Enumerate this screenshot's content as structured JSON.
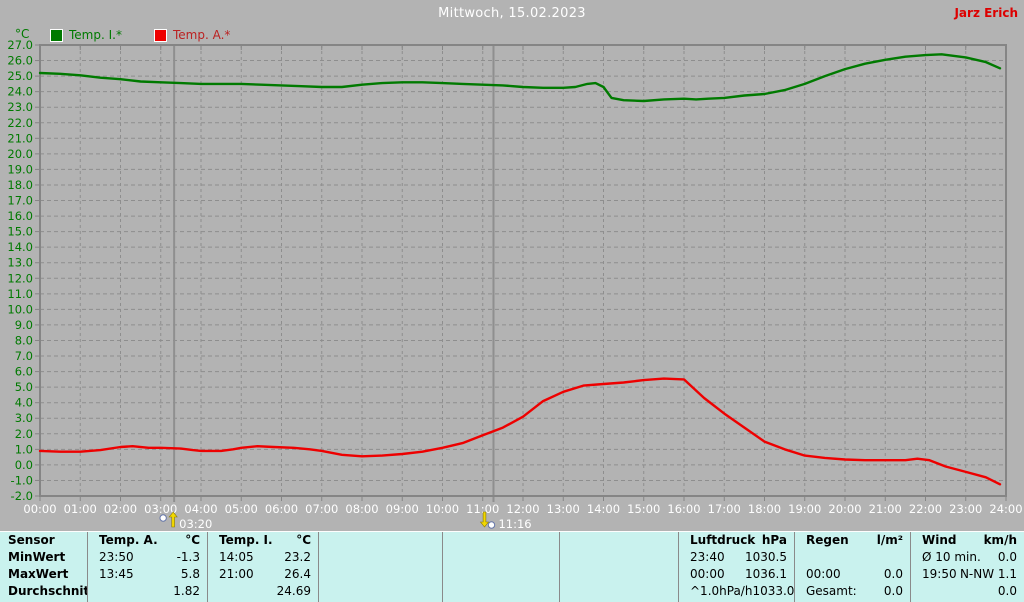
{
  "header": {
    "title": "Mittwoch, 15.02.2023",
    "user": "Jarz Erich"
  },
  "colors": {
    "background": "#b3b3b3",
    "grid": "#8e8e8e",
    "axis": "#858585",
    "event_line": "#8f8f8f",
    "table_background": "#c9f2ee",
    "title_text": "#ffffff",
    "user_text": "#dd0000",
    "y_label_text": "#007a00",
    "x_label_text": "#ffffff",
    "temp_i": "#007a00",
    "temp_a": "#ee0000",
    "event_arrow": "#f2d800"
  },
  "chart_data": {
    "type": "line",
    "title": "Mittwoch, 15.02.2023",
    "y_unit": "°C",
    "ylim": [
      -2.0,
      27.0
    ],
    "y_tick_step": 1.0,
    "y_tick_labels": [
      "27.0",
      "26.0",
      "25.0",
      "24.0",
      "23.0",
      "22.0",
      "21.0",
      "20.0",
      "19.0",
      "18.0",
      "17.0",
      "16.0",
      "15.0",
      "14.0",
      "13.0",
      "12.0",
      "11.0",
      "10.0",
      "9.0",
      "8.0",
      "7.0",
      "6.0",
      "5.0",
      "4.0",
      "3.0",
      "2.0",
      "1.0",
      "0.0",
      "-1.0",
      "-2.0"
    ],
    "xlim_hours": [
      0,
      24
    ],
    "x_tick_labels": [
      "00:00",
      "01:00",
      "02:00",
      "03:00",
      "04:00",
      "05:00",
      "06:00",
      "07:00",
      "08:00",
      "09:00",
      "10:00",
      "11:00",
      "12:00",
      "13:00",
      "14:00",
      "15:00",
      "16:00",
      "17:00",
      "18:00",
      "19:00",
      "20:00",
      "21:00",
      "22:00",
      "23:00",
      "24:00"
    ],
    "grid": "dashed",
    "legend_position": "top-left",
    "series": [
      {
        "name": "Temp. I.*",
        "color": "#007a00",
        "points": [
          [
            0,
            25.2
          ],
          [
            0.5,
            25.15
          ],
          [
            1,
            25.05
          ],
          [
            1.5,
            24.9
          ],
          [
            2,
            24.8
          ],
          [
            2.5,
            24.65
          ],
          [
            3,
            24.6
          ],
          [
            3.5,
            24.55
          ],
          [
            4,
            24.5
          ],
          [
            4.5,
            24.5
          ],
          [
            5,
            24.5
          ],
          [
            5.5,
            24.45
          ],
          [
            6,
            24.4
          ],
          [
            6.5,
            24.35
          ],
          [
            7,
            24.3
          ],
          [
            7.5,
            24.3
          ],
          [
            8,
            24.45
          ],
          [
            8.5,
            24.55
          ],
          [
            9,
            24.6
          ],
          [
            9.5,
            24.6
          ],
          [
            10,
            24.55
          ],
          [
            10.5,
            24.5
          ],
          [
            11,
            24.45
          ],
          [
            11.5,
            24.4
          ],
          [
            12,
            24.3
          ],
          [
            12.5,
            24.25
          ],
          [
            13,
            24.25
          ],
          [
            13.3,
            24.3
          ],
          [
            13.6,
            24.5
          ],
          [
            13.8,
            24.55
          ],
          [
            14,
            24.3
          ],
          [
            14.2,
            23.6
          ],
          [
            14.5,
            23.45
          ],
          [
            15,
            23.4
          ],
          [
            15.5,
            23.5
          ],
          [
            16,
            23.55
          ],
          [
            16.3,
            23.5
          ],
          [
            16.6,
            23.55
          ],
          [
            17,
            23.6
          ],
          [
            17.5,
            23.75
          ],
          [
            18,
            23.85
          ],
          [
            18.5,
            24.1
          ],
          [
            19,
            24.5
          ],
          [
            19.5,
            25.0
          ],
          [
            20,
            25.45
          ],
          [
            20.5,
            25.8
          ],
          [
            21,
            26.05
          ],
          [
            21.5,
            26.25
          ],
          [
            22,
            26.35
          ],
          [
            22.4,
            26.4
          ],
          [
            23,
            26.2
          ],
          [
            23.5,
            25.9
          ],
          [
            23.85,
            25.5
          ]
        ]
      },
      {
        "name": "Temp. A.*",
        "color": "#ee0000",
        "points": [
          [
            0,
            0.9
          ],
          [
            0.5,
            0.85
          ],
          [
            1,
            0.85
          ],
          [
            1.5,
            0.95
          ],
          [
            2,
            1.15
          ],
          [
            2.3,
            1.2
          ],
          [
            2.7,
            1.1
          ],
          [
            3,
            1.1
          ],
          [
            3.5,
            1.05
          ],
          [
            3.8,
            0.95
          ],
          [
            4,
            0.9
          ],
          [
            4.5,
            0.9
          ],
          [
            4.8,
            1.0
          ],
          [
            5,
            1.1
          ],
          [
            5.4,
            1.2
          ],
          [
            5.8,
            1.15
          ],
          [
            6.3,
            1.1
          ],
          [
            6.7,
            1.0
          ],
          [
            7,
            0.9
          ],
          [
            7.5,
            0.65
          ],
          [
            8,
            0.55
          ],
          [
            8.5,
            0.6
          ],
          [
            9,
            0.7
          ],
          [
            9.5,
            0.85
          ],
          [
            10,
            1.1
          ],
          [
            10.5,
            1.4
          ],
          [
            11,
            1.9
          ],
          [
            11.5,
            2.4
          ],
          [
            12,
            3.1
          ],
          [
            12.5,
            4.1
          ],
          [
            13,
            4.7
          ],
          [
            13.5,
            5.1
          ],
          [
            14,
            5.2
          ],
          [
            14.5,
            5.3
          ],
          [
            15,
            5.45
          ],
          [
            15.5,
            5.55
          ],
          [
            16,
            5.5
          ],
          [
            16.5,
            4.3
          ],
          [
            17,
            3.3
          ],
          [
            17.5,
            2.4
          ],
          [
            18,
            1.5
          ],
          [
            18.5,
            1.0
          ],
          [
            19,
            0.6
          ],
          [
            19.5,
            0.45
          ],
          [
            20,
            0.35
          ],
          [
            20.5,
            0.3
          ],
          [
            21,
            0.3
          ],
          [
            21.5,
            0.3
          ],
          [
            21.8,
            0.4
          ],
          [
            22.1,
            0.3
          ],
          [
            22.5,
            -0.1
          ],
          [
            23,
            -0.45
          ],
          [
            23.5,
            -0.8
          ],
          [
            23.85,
            -1.25
          ]
        ]
      }
    ],
    "event_markers": [
      {
        "label": "03:20",
        "hours": 3.333,
        "direction": "up"
      },
      {
        "label": "11:16",
        "hours": 11.267,
        "direction": "down"
      }
    ]
  },
  "table": {
    "row_labels": [
      "Sensor",
      "MinWert",
      "MaxWert",
      "Durchschnitt"
    ],
    "columns": [
      {
        "name": "Temp. A.",
        "unit": "°C",
        "rows": [
          [
            "23:50",
            "-1.3"
          ],
          [
            "13:45",
            "5.8"
          ],
          [
            "",
            "1.82"
          ]
        ]
      },
      {
        "name": "Temp. I.",
        "unit": "°C",
        "rows": [
          [
            "14:05",
            "23.2"
          ],
          [
            "21:00",
            "26.4"
          ],
          [
            "",
            "24.69"
          ]
        ]
      },
      {
        "name": "",
        "unit": "",
        "rows": [
          [
            "",
            ""
          ],
          [
            "",
            ""
          ],
          [
            "",
            ""
          ]
        ]
      },
      {
        "name": "",
        "unit": "",
        "rows": [
          [
            "",
            ""
          ],
          [
            "",
            ""
          ],
          [
            "",
            ""
          ]
        ]
      },
      {
        "name": "",
        "unit": "",
        "rows": [
          [
            "",
            ""
          ],
          [
            "",
            ""
          ],
          [
            "",
            ""
          ]
        ]
      },
      {
        "name": "Luftdruck",
        "unit": "hPa",
        "rows": [
          [
            "23:40",
            "1030.5"
          ],
          [
            "00:00",
            "1036.1"
          ],
          [
            "^1.0hPa/h",
            "1033.0"
          ]
        ]
      },
      {
        "name": "Regen",
        "unit": "l/m²",
        "rows": [
          [
            "",
            ""
          ],
          [
            "00:00",
            "0.0"
          ],
          [
            "Gesamt:",
            "0.0"
          ]
        ]
      },
      {
        "name": "Wind",
        "unit": "km/h",
        "rows": [
          [
            "Ø 10 min.",
            "0.0"
          ],
          [
            "19:50",
            "N-NW 1.1"
          ],
          [
            "",
            "0.0"
          ]
        ]
      }
    ]
  }
}
